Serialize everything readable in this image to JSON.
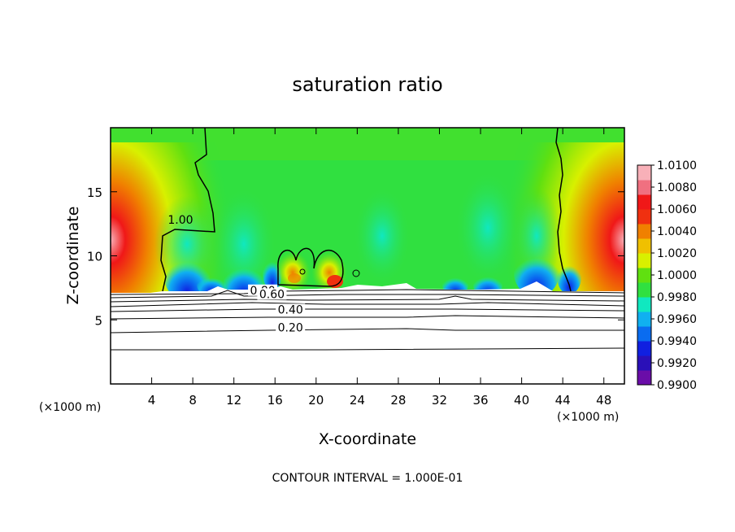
{
  "chart_data": {
    "type": "heatmap",
    "title": "saturation ratio",
    "xlabel": "X-coordinate",
    "ylabel": "Z-coordinate",
    "x_unit_label": "(×1000 m)",
    "z_unit_label": "(×1000 m)",
    "x_ticks": [
      4,
      8,
      12,
      16,
      20,
      24,
      28,
      32,
      36,
      40,
      44,
      48
    ],
    "z_ticks": [
      5,
      10,
      15
    ],
    "xlim": [
      0,
      50
    ],
    "zlim": [
      0,
      20
    ],
    "footer": "CONTOUR INTERVAL = 1.000E-01",
    "colorbar": {
      "min": 0.99,
      "max": 1.01,
      "tick_values": [
        0.99,
        0.992,
        0.994,
        0.996,
        0.998,
        1.0,
        1.002,
        1.004,
        1.006,
        1.008,
        1.01
      ],
      "tick_labels": [
        "0.9900",
        "0.9920",
        "0.9940",
        "0.9960",
        "0.9980",
        "1.0000",
        "1.0020",
        "1.0040",
        "1.0060",
        "1.0080",
        "1.0100"
      ],
      "colors": [
        "#6a0da8",
        "#2a10b8",
        "#1020e0",
        "#0a6cf0",
        "#10b0f0",
        "#10e8c0",
        "#30e040",
        "#60e010",
        "#d8f000",
        "#f0c000",
        "#f08000",
        "#f03010",
        "#f01818",
        "#f07080",
        "#f8b0b8"
      ]
    },
    "contour_labels": [
      {
        "text": "1.00",
        "x": 6.8,
        "z": 12.5
      },
      {
        "text": "0.80",
        "x": 14.8,
        "z": 7.0
      },
      {
        "text": "0.60",
        "x": 15.7,
        "z": 6.7
      },
      {
        "text": "0.40",
        "x": 17.5,
        "z": 5.5
      },
      {
        "text": "0.20",
        "x": 17.5,
        "z": 4.1
      }
    ],
    "contour_levels": [
      0.2,
      0.4,
      0.6,
      0.8,
      1.0
    ],
    "cloud_top_z": 7.2,
    "base_value": 0.9998
  }
}
